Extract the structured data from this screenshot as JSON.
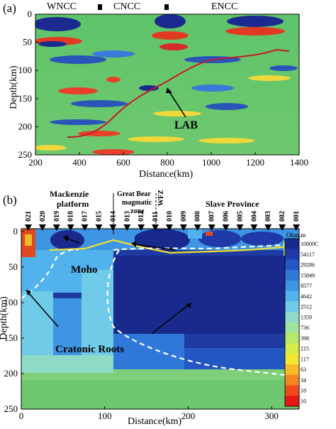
{
  "panel_a": {
    "label": "(a)",
    "regions": [
      "WNCC",
      "CNCC",
      "ENCC"
    ],
    "ylabel": "Depth(km)",
    "xlabel": "Distance(km)",
    "annotation": "LAB",
    "xticks": [
      "200",
      "400",
      "600",
      "800",
      "1000",
      "1200",
      "1400"
    ],
    "yticks": [
      "0",
      "50",
      "100",
      "150",
      "200",
      "250"
    ]
  },
  "panel_b": {
    "label": "(b)",
    "titles": {
      "mackenzie_1": "Mackenzie",
      "mackenzie_2": "platform",
      "great_bear_1": "Great Bear",
      "great_bear_2": "magmatic",
      "great_bear_3": "zone",
      "wfz": "WFZ",
      "slave": "Slave Province"
    },
    "stations": [
      "021",
      "020",
      "019",
      "018",
      "017",
      "015",
      "014",
      "013",
      "012",
      "011",
      "010",
      "009",
      "008",
      "007",
      "006",
      "005",
      "004",
      "003",
      "002",
      "001"
    ],
    "ylabel": "Depth(km)",
    "xlabel": "Distance(km)",
    "moho": "Moho",
    "cratonic": "Cratonic Roots",
    "xticks": [
      "0",
      "100",
      "200",
      "300"
    ],
    "yticks": [
      "0",
      "50",
      "100",
      "150",
      "200",
      "250"
    ],
    "colorbar_title": "Ohm.m",
    "colorbar_labels": [
      "10000C",
      "54117",
      "29286",
      "15849",
      "8577",
      "4642",
      "2512",
      "1359",
      "736",
      "398",
      "215",
      "117",
      "63",
      "34",
      "18",
      "10"
    ],
    "colorbar_colors": [
      "#1a2a8c",
      "#1f3aa8",
      "#2456c4",
      "#2f78d8",
      "#3d95e4",
      "#52b2ee",
      "#6fcbe8",
      "#8edcc8",
      "#9fe39e",
      "#b8e86a",
      "#d6ec48",
      "#f2e830",
      "#f8bb25",
      "#f4851f",
      "#ee4a1c",
      "#e51717"
    ]
  }
}
